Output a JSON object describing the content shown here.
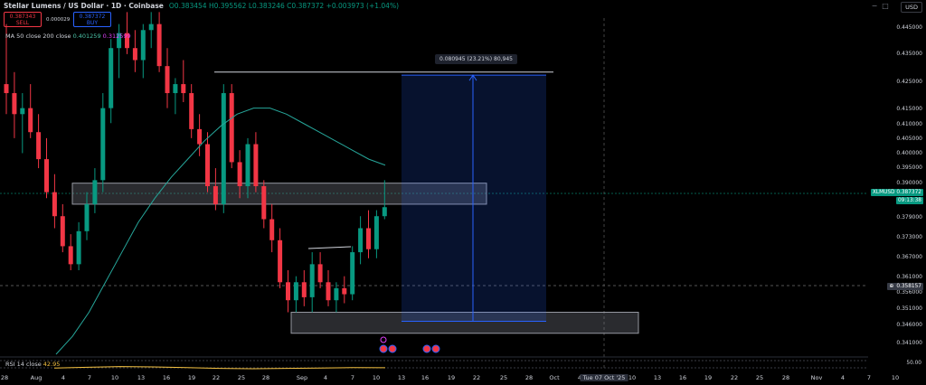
{
  "header": {
    "title": "Stellar Lumens / US Dollar · 1D · Coinbase",
    "ohlc": {
      "o": "O0.383454",
      "h": "H0.395562",
      "l": "L0.383246",
      "c": "C0.387372",
      "chg": "+0.003973 (+1.04%)"
    }
  },
  "trade": {
    "sell_price": "0.387343",
    "sell_label": "SELL",
    "spread": "0.000029",
    "buy_price": "0.387372",
    "buy_label": "BUY"
  },
  "indicators": {
    "ma_label": "MA 50 close 200 close",
    "ma50": "0.401259",
    "ma200": "0.312599",
    "rsi_label": "RSI 14 close",
    "rsi_value": "42.95"
  },
  "currency": "USD",
  "price_ticks": [
    "0.445000",
    "0.435000",
    "0.425000",
    "0.415000",
    "0.410000",
    "0.405000",
    "0.400000",
    "0.395000",
    "0.390000",
    "0.379000",
    "0.373000",
    "0.367000",
    "0.361000",
    "0.356000",
    "0.351000",
    "0.346000",
    "0.341000"
  ],
  "rsi_axis": "50.00",
  "tags": {
    "symbol": "XLMUSD",
    "last": "0.387372",
    "countdown": "09:13:38",
    "hover": "0.358157"
  },
  "measure_label": "0.080945 (23.21%) 80,945",
  "x_labels": [
    "28",
    "Aug",
    "4",
    "7",
    "10",
    "13",
    "16",
    "19",
    "22",
    "25",
    "28",
    "Sep",
    "4",
    "7",
    "10",
    "13",
    "16",
    "19",
    "22",
    "25",
    "28",
    "Oct",
    "4",
    "7",
    "Tue 07 Oct '25",
    "10",
    "13",
    "16",
    "19",
    "22",
    "25",
    "28",
    "Nov",
    "4",
    "7",
    "10"
  ],
  "colors": {
    "up": "#089981",
    "down": "#f23645",
    "accent": "#2962ff",
    "ma50": "#26a69a",
    "rsi": "#f5c242"
  },
  "icons": [
    "minus-icon",
    "square-icon",
    "close-icon",
    "settings-icon",
    "event-icon"
  ],
  "chart_data": {
    "type": "candlestick",
    "title": "Stellar Lumens / US Dollar · 1D · Coinbase",
    "candles": [
      {
        "o": 0.428,
        "h": 0.448,
        "l": 0.418,
        "c": 0.425
      },
      {
        "o": 0.425,
        "h": 0.432,
        "l": 0.41,
        "c": 0.418
      },
      {
        "o": 0.418,
        "h": 0.425,
        "l": 0.405,
        "c": 0.42
      },
      {
        "o": 0.42,
        "h": 0.428,
        "l": 0.41,
        "c": 0.412
      },
      {
        "o": 0.412,
        "h": 0.418,
        "l": 0.4,
        "c": 0.403
      },
      {
        "o": 0.403,
        "h": 0.41,
        "l": 0.39,
        "c": 0.392
      },
      {
        "o": 0.392,
        "h": 0.398,
        "l": 0.38,
        "c": 0.384
      },
      {
        "o": 0.384,
        "h": 0.388,
        "l": 0.372,
        "c": 0.374
      },
      {
        "o": 0.374,
        "h": 0.378,
        "l": 0.366,
        "c": 0.368
      },
      {
        "o": 0.368,
        "h": 0.382,
        "l": 0.366,
        "c": 0.379
      },
      {
        "o": 0.379,
        "h": 0.392,
        "l": 0.376,
        "c": 0.388
      },
      {
        "o": 0.388,
        "h": 0.4,
        "l": 0.385,
        "c": 0.396
      },
      {
        "o": 0.396,
        "h": 0.425,
        "l": 0.392,
        "c": 0.42
      },
      {
        "o": 0.42,
        "h": 0.443,
        "l": 0.415,
        "c": 0.44
      },
      {
        "o": 0.44,
        "h": 0.448,
        "l": 0.43,
        "c": 0.445
      },
      {
        "o": 0.445,
        "h": 0.452,
        "l": 0.438,
        "c": 0.44
      },
      {
        "o": 0.44,
        "h": 0.446,
        "l": 0.432,
        "c": 0.436
      },
      {
        "o": 0.436,
        "h": 0.448,
        "l": 0.43,
        "c": 0.446
      },
      {
        "o": 0.446,
        "h": 0.452,
        "l": 0.44,
        "c": 0.448
      },
      {
        "o": 0.448,
        "h": 0.452,
        "l": 0.432,
        "c": 0.434
      },
      {
        "o": 0.434,
        "h": 0.44,
        "l": 0.42,
        "c": 0.425
      },
      {
        "o": 0.425,
        "h": 0.43,
        "l": 0.418,
        "c": 0.428
      },
      {
        "o": 0.428,
        "h": 0.436,
        "l": 0.422,
        "c": 0.425
      },
      {
        "o": 0.425,
        "h": 0.428,
        "l": 0.41,
        "c": 0.413
      },
      {
        "o": 0.413,
        "h": 0.418,
        "l": 0.404,
        "c": 0.408
      },
      {
        "o": 0.408,
        "h": 0.412,
        "l": 0.392,
        "c": 0.394
      },
      {
        "o": 0.394,
        "h": 0.4,
        "l": 0.386,
        "c": 0.388
      },
      {
        "o": 0.388,
        "h": 0.428,
        "l": 0.385,
        "c": 0.425
      },
      {
        "o": 0.425,
        "h": 0.428,
        "l": 0.4,
        "c": 0.402
      },
      {
        "o": 0.402,
        "h": 0.406,
        "l": 0.39,
        "c": 0.394
      },
      {
        "o": 0.394,
        "h": 0.41,
        "l": 0.39,
        "c": 0.408
      },
      {
        "o": 0.408,
        "h": 0.412,
        "l": 0.392,
        "c": 0.394
      },
      {
        "o": 0.394,
        "h": 0.396,
        "l": 0.38,
        "c": 0.383
      },
      {
        "o": 0.383,
        "h": 0.388,
        "l": 0.372,
        "c": 0.376
      },
      {
        "o": 0.376,
        "h": 0.38,
        "l": 0.36,
        "c": 0.362
      },
      {
        "o": 0.362,
        "h": 0.366,
        "l": 0.352,
        "c": 0.356
      },
      {
        "o": 0.356,
        "h": 0.364,
        "l": 0.352,
        "c": 0.362
      },
      {
        "o": 0.362,
        "h": 0.366,
        "l": 0.354,
        "c": 0.357
      },
      {
        "o": 0.357,
        "h": 0.372,
        "l": 0.352,
        "c": 0.368
      },
      {
        "o": 0.368,
        "h": 0.372,
        "l": 0.36,
        "c": 0.362
      },
      {
        "o": 0.362,
        "h": 0.366,
        "l": 0.354,
        "c": 0.356
      },
      {
        "o": 0.356,
        "h": 0.362,
        "l": 0.352,
        "c": 0.36
      },
      {
        "o": 0.36,
        "h": 0.364,
        "l": 0.355,
        "c": 0.358
      },
      {
        "o": 0.358,
        "h": 0.374,
        "l": 0.356,
        "c": 0.372
      },
      {
        "o": 0.372,
        "h": 0.384,
        "l": 0.368,
        "c": 0.38
      },
      {
        "o": 0.38,
        "h": 0.386,
        "l": 0.37,
        "c": 0.373
      },
      {
        "o": 0.373,
        "h": 0.386,
        "l": 0.37,
        "c": 0.384
      },
      {
        "o": 0.384,
        "h": 0.396,
        "l": 0.383,
        "c": 0.387
      }
    ],
    "ma50": [
      0.338,
      0.344,
      0.352,
      0.362,
      0.372,
      0.382,
      0.39,
      0.397,
      0.403,
      0.409,
      0.414,
      0.418,
      0.42,
      0.42,
      0.418,
      0.415,
      0.412,
      0.409,
      0.406,
      0.403,
      0.401
    ],
    "rsi": [
      42,
      44,
      46,
      45,
      43,
      41,
      40,
      41,
      42,
      43,
      42.95
    ],
    "zones": [
      {
        "name": "resistance",
        "low": 0.388,
        "high": 0.395
      },
      {
        "name": "demand",
        "low": 0.345,
        "high": 0.352
      }
    ],
    "target_line": 0.432,
    "measure": {
      "from": 0.349,
      "to": 0.431,
      "label": "0.080945 (23.21%) 80,945"
    },
    "last_price": 0.387372,
    "ylim": [
      0.338,
      0.45
    ]
  }
}
